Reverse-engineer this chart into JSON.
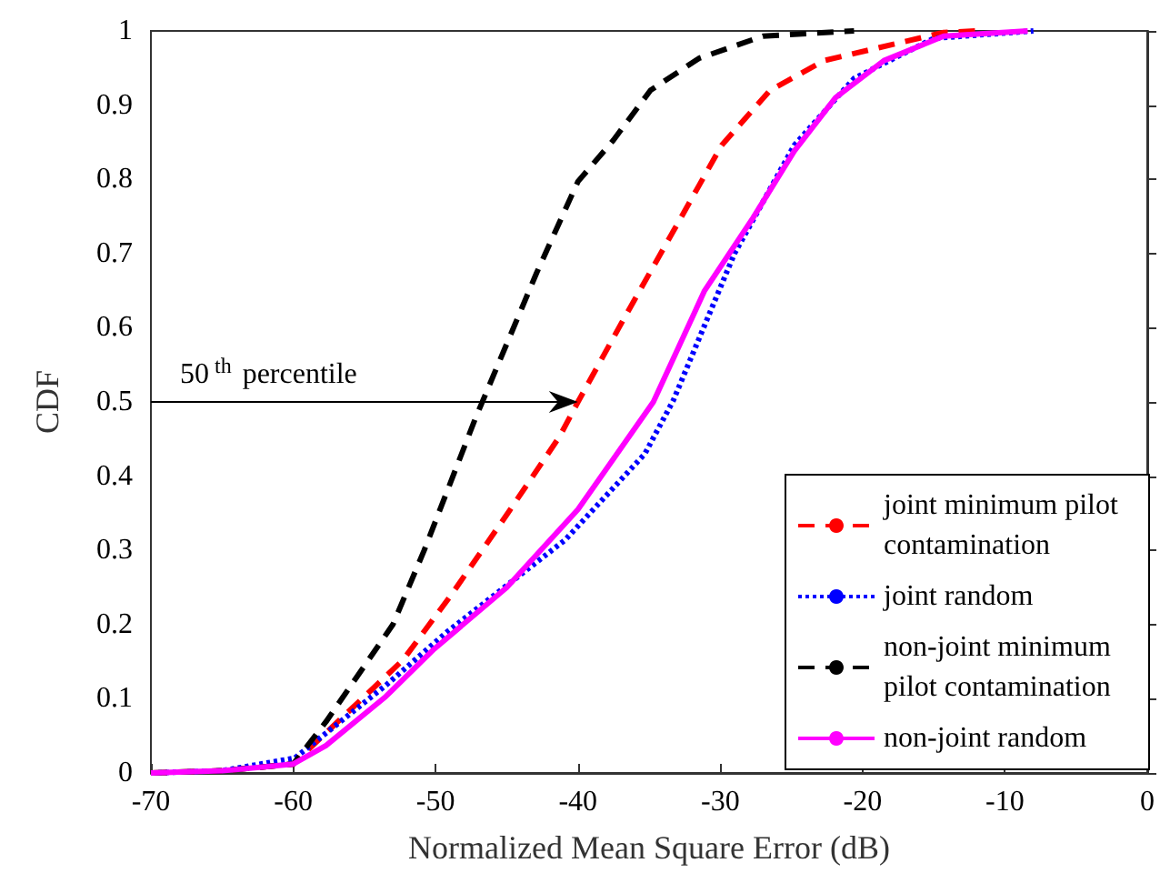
{
  "chart_data": {
    "type": "line",
    "xlabel": "Normalized Mean Square Error (dB)",
    "ylabel": "CDF",
    "xlim": [
      -70,
      0
    ],
    "xticks": [
      -70,
      -60,
      -50,
      -40,
      -30,
      -20,
      -10,
      0
    ],
    "ylim": [
      0,
      1
    ],
    "yticks": [
      0,
      0.1,
      0.2,
      0.3,
      0.4,
      0.5,
      0.6,
      0.7,
      0.8,
      0.9,
      1
    ],
    "grid": false,
    "legend": "bottom right",
    "marker": "none",
    "annotations": [
      {
        "text": "50$^{th}$ percentile",
        "x": -40,
        "y": 0.5
      }
    ],
    "series": [
      {
        "name": "joint minimum pilot contamination",
        "color": "#ff0000",
        "line_style": "dashed",
        "x": [
          -70,
          -65,
          -60,
          -57.7,
          -52.3,
          -48.9,
          -45,
          -41.3,
          -40,
          -36.6,
          -33.3,
          -29.9,
          -26.5,
          -22.7,
          -19.4,
          -14.3,
          -12
        ],
        "values": [
          0,
          0.003,
          0.012,
          0.054,
          0.152,
          0.24,
          0.348,
          0.453,
          0.5,
          0.618,
          0.73,
          0.846,
          0.92,
          0.96,
          0.975,
          0.998,
          1
        ]
      },
      {
        "name": "joint random",
        "color": "#0000ff",
        "line_style": "dotted",
        "x": [
          -70,
          -65,
          -59.9,
          -53.5,
          -49.2,
          -40.9,
          -35.3,
          -33.3,
          -29,
          -24.8,
          -20.6,
          -15,
          -8
        ],
        "values": [
          0,
          0.003,
          0.02,
          0.118,
          0.19,
          0.314,
          0.43,
          0.502,
          0.7,
          0.846,
          0.936,
          0.99,
          1
        ]
      },
      {
        "name": "non-joint minimum pilot contamination",
        "color": "#000000",
        "line_style": "dashed",
        "x": [
          -70,
          -65,
          -60,
          -57.7,
          -53,
          -50.8,
          -47.2,
          -42.9,
          -40,
          -37.5,
          -34.9,
          -31.5,
          -27,
          -20.6
        ],
        "values": [
          0,
          0.003,
          0.012,
          0.069,
          0.2,
          0.3,
          0.478,
          0.674,
          0.797,
          0.853,
          0.92,
          0.963,
          0.993,
          1
        ]
      },
      {
        "name": "non-joint random",
        "color": "#ff00ff",
        "line_style": "solid",
        "x": [
          -70,
          -65,
          -60,
          -57.7,
          -53.5,
          -50.1,
          -45,
          -40,
          -34.7,
          -31.1,
          -27.7,
          -24.8,
          -21.9,
          -18.5,
          -14.3,
          -8.4
        ],
        "values": [
          0,
          0.003,
          0.012,
          0.037,
          0.103,
          0.167,
          0.25,
          0.355,
          0.5,
          0.65,
          0.748,
          0.838,
          0.91,
          0.96,
          0.993,
          1
        ]
      }
    ]
  }
}
